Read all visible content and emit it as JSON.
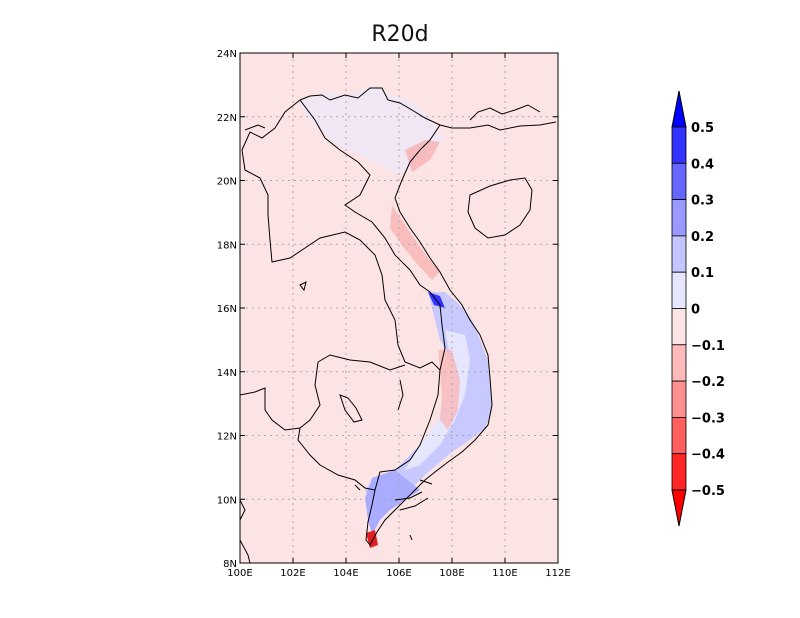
{
  "title": "R20d",
  "map": {
    "lon_range": [
      100,
      112
    ],
    "lat_range": [
      8,
      24
    ],
    "x_ticks": [
      "100E",
      "102E",
      "104E",
      "106E",
      "108E",
      "110E",
      "112E"
    ],
    "y_ticks": [
      "8N",
      "10N",
      "12N",
      "14N",
      "16N",
      "18N",
      "20N",
      "22N",
      "24N"
    ],
    "grid": "dotted",
    "background_color": "#fde4e4",
    "coastline_color": "#000000"
  },
  "colorbar": {
    "placement": "right",
    "orientation": "vertical",
    "extend": "both",
    "levels": [
      "0.5",
      "0.4",
      "0.3",
      "0.2",
      "0.1",
      "0",
      "-0.1",
      "-0.2",
      "-0.3",
      "-0.4",
      "-0.5"
    ],
    "colors_top_to_bottom": [
      "#0000ff",
      "#3333ff",
      "#6666ff",
      "#9999ff",
      "#c4c4ff",
      "#e6e6ff",
      "#fde4e4",
      "#ffbbbb",
      "#ff8f8f",
      "#ff5f5f",
      "#ff2626",
      "#ff0000"
    ]
  }
}
